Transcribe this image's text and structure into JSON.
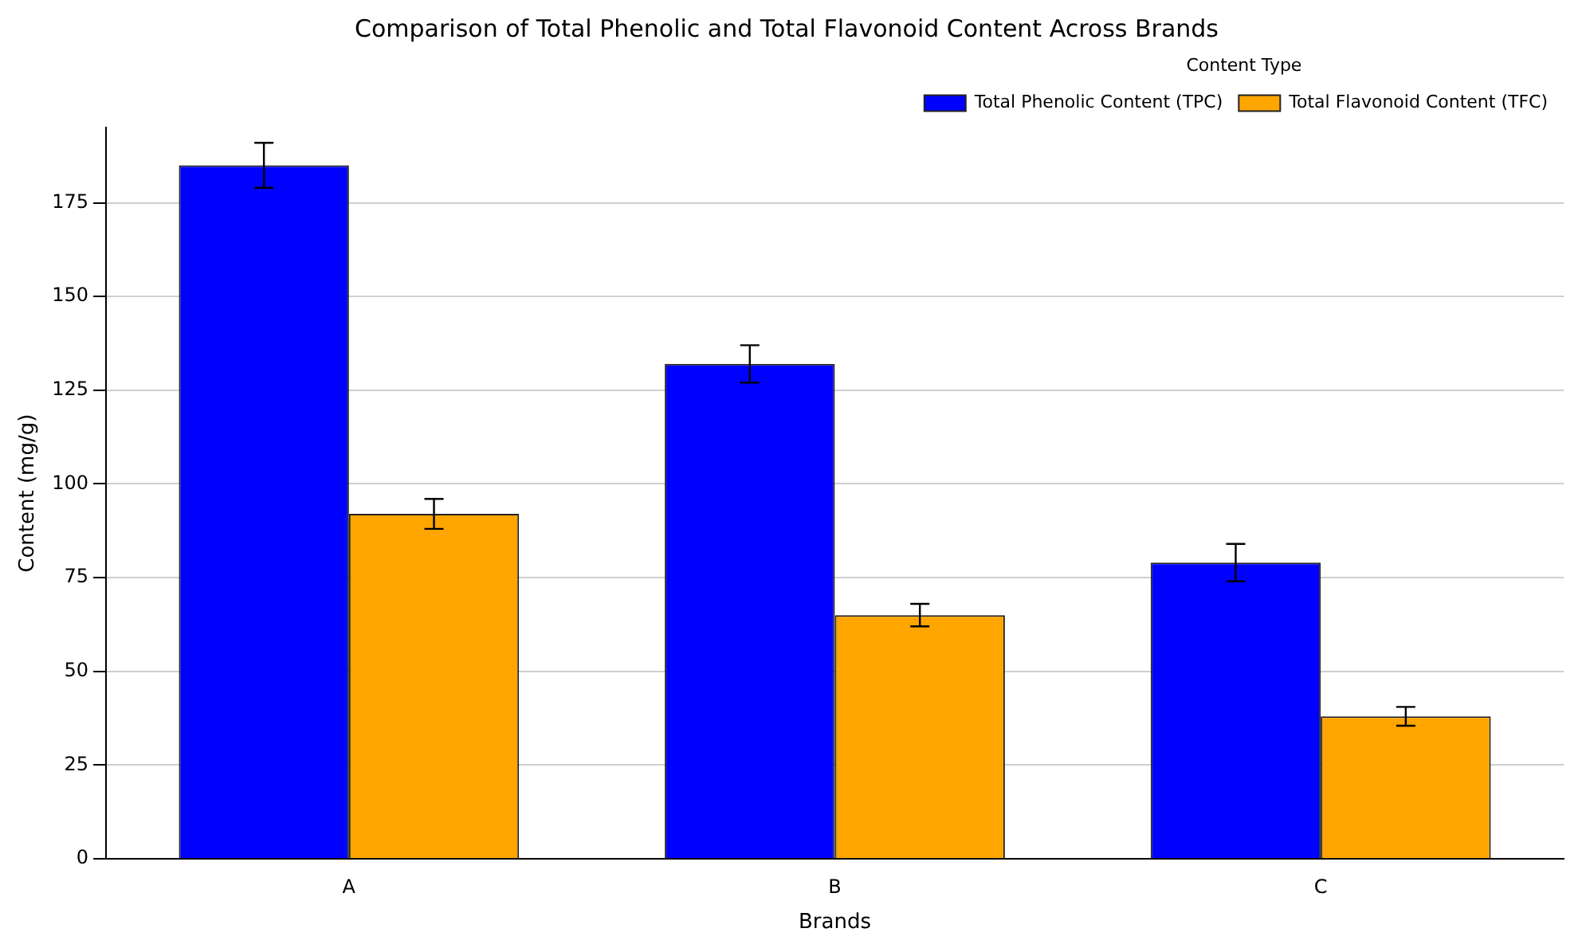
{
  "chart_data": {
    "type": "bar",
    "title": "Comparison of Total Phenolic and Total Flavonoid Content Across Brands",
    "xlabel": "Brands",
    "ylabel": "Content (mg/g)",
    "legend_title": "Content Type",
    "categories": [
      "A",
      "B",
      "C"
    ],
    "series": [
      {
        "name": "Total Phenolic Content (TPC)",
        "color": "#0000ff",
        "values": [
          185,
          132,
          79
        ],
        "errors": [
          6,
          5,
          5
        ]
      },
      {
        "name": "Total Flavonoid Content (TFC)",
        "color": "#ffa500",
        "values": [
          92,
          65,
          38
        ],
        "errors": [
          4,
          3,
          2.5
        ]
      }
    ],
    "ylim": [
      0,
      195
    ],
    "yticks": [
      0,
      25,
      50,
      75,
      100,
      125,
      150,
      175
    ],
    "grid": "y",
    "legend": "top right"
  }
}
